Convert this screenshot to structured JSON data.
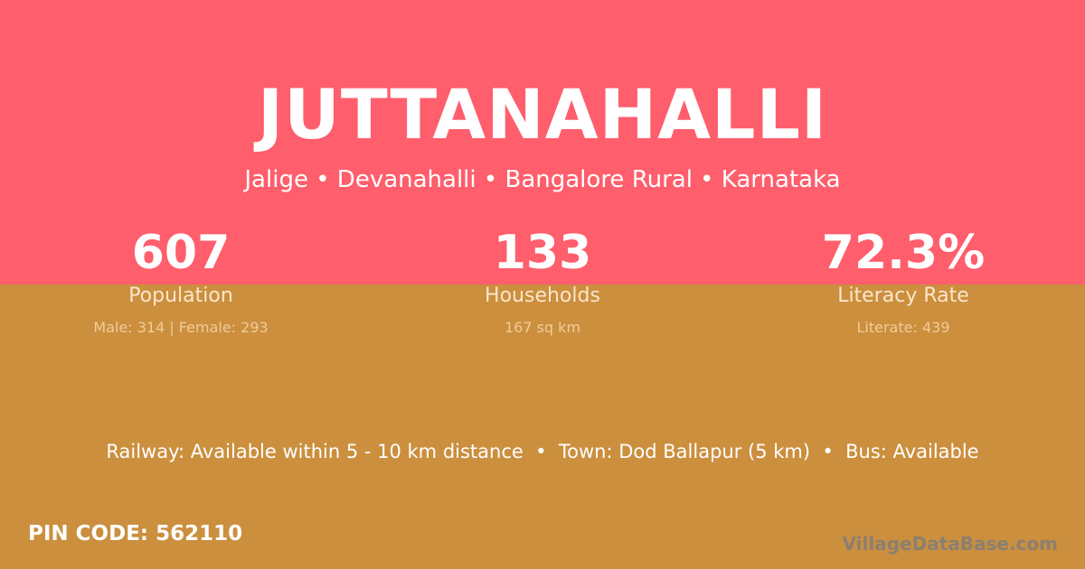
{
  "colors": {
    "top": "#ff5e6c",
    "bottom": "#cb8f3e"
  },
  "title": "JUTTANAHALLI",
  "subtitle": "Jalige • Devanahalli • Bangalore Rural • Karnataka",
  "stats": [
    {
      "value": "607",
      "label": "Population",
      "detail": "Male: 314 | Female: 293"
    },
    {
      "value": "133",
      "label": "Households",
      "detail": "167 sq km"
    },
    {
      "value": "72.3%",
      "label": "Literacy Rate",
      "detail": "Literate: 439"
    }
  ],
  "info": "Railway: Available within 5 - 10 km distance  •  Town: Dod Ballapur (5 km)  •  Bus: Available",
  "pin": "PIN CODE: 562110",
  "brand": "VillageDataBase.com"
}
